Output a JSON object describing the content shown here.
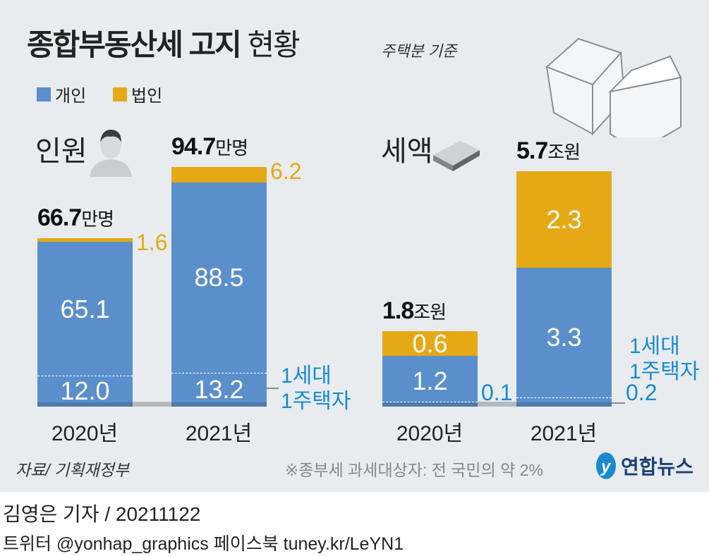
{
  "title": {
    "bold": "종합부동산세 고지",
    "light": "현황",
    "basis": "주택분 기준"
  },
  "legend": [
    {
      "label": "개인",
      "color": "#5b8fcb"
    },
    {
      "label": "법인",
      "color": "#e5a915"
    }
  ],
  "colors": {
    "individual": "#5b8fcb",
    "corporate": "#e5a915",
    "annotation": "#1a8ad0"
  },
  "chart_data": [
    {
      "type": "bar",
      "stacked": true,
      "title": "인원",
      "categories": [
        "2020년",
        "2021년"
      ],
      "totals": [
        "66.7",
        "94.7"
      ],
      "unit": "만명",
      "series": [
        {
          "name": "개인",
          "values": [
            65.1,
            88.5
          ]
        },
        {
          "name": "법인",
          "values": [
            1.6,
            6.2
          ]
        }
      ],
      "subset": {
        "name": "1세대 1주택자",
        "values": [
          12.0,
          13.2
        ]
      },
      "labels": {
        "individual": [
          "65.1",
          "88.5"
        ],
        "corporate": [
          "1.6",
          "6.2"
        ],
        "subset": [
          "12.0",
          "13.2"
        ]
      }
    },
    {
      "type": "bar",
      "stacked": true,
      "title": "세액",
      "categories": [
        "2020년",
        "2021년"
      ],
      "totals": [
        "1.8",
        "5.7"
      ],
      "unit": "조원",
      "series": [
        {
          "name": "개인",
          "values": [
            1.2,
            3.3
          ]
        },
        {
          "name": "법인",
          "values": [
            0.6,
            2.3
          ]
        }
      ],
      "subset": {
        "name": "1세대 1주택자",
        "values": [
          0.1,
          0.2
        ]
      },
      "labels": {
        "individual": [
          "1.2",
          "3.3"
        ],
        "corporate": [
          "0.6",
          "2.3"
        ],
        "subset": [
          "0.1",
          "0.2"
        ]
      }
    }
  ],
  "subset_label": [
    "1세대",
    "1주택자"
  ],
  "footer": {
    "source": "자료/ 기획재정부",
    "note": "※종부세 과세대상자: 전 국민의 약 2%",
    "logo": "연합뉴스",
    "byline": "김영은 기자 / 20211122",
    "social": "트위터 @yonhap_graphics  페이스북 tuney.kr/LeYN1"
  }
}
